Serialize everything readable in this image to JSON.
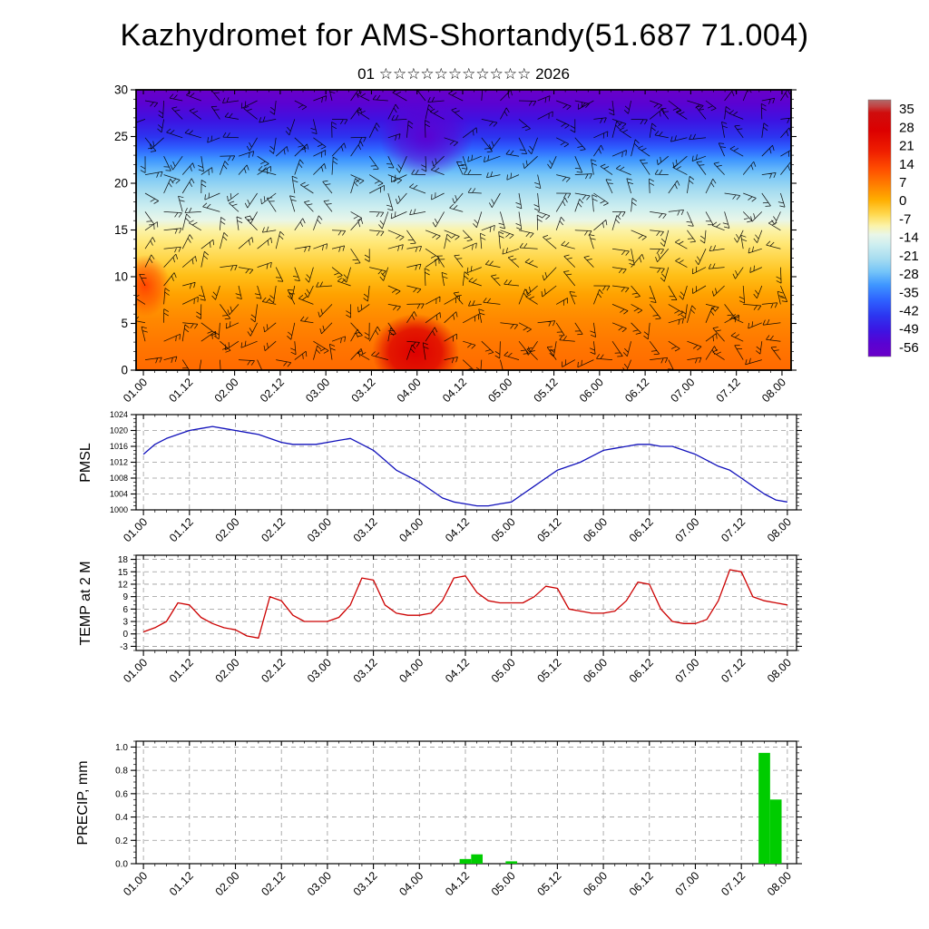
{
  "title": "Kazhydromet for AMS-Shortandy(51.687 71.004)",
  "subtitle": "01 ☆☆☆☆☆☆☆☆☆☆☆ 2026",
  "time_axis": {
    "ticks": [
      "01.00",
      "01.12",
      "02.00",
      "02.12",
      "03.00",
      "03.12",
      "04.00",
      "04.12",
      "05.00",
      "05.12",
      "06.00",
      "06.12",
      "07.00",
      "07.12",
      "08.00"
    ],
    "minor_step_hours": 3
  },
  "chart_data": [
    {
      "type": "heatmap",
      "name": "Wind and temperature time-height cross-section",
      "overlay": "wind barbs",
      "ylim": [
        0,
        30
      ],
      "yticks": [
        0,
        5,
        10,
        15,
        20,
        25,
        30
      ],
      "x_axis": "time_axis",
      "colorbar_ticks": [
        35,
        28,
        21,
        14,
        7,
        0,
        -7,
        -14,
        -21,
        -28,
        -35,
        -42,
        -49,
        -56
      ],
      "colorbar_top_color": "#cf0d0d",
      "colorbar_bottom_color": "#6a00c8"
    },
    {
      "type": "line",
      "name": "PMSL",
      "color": "#1111bb",
      "ylim": [
        1000,
        1024
      ],
      "yticks": [
        1000,
        1004,
        1008,
        1012,
        1016,
        1020,
        1024
      ],
      "x_axis": "time_axis",
      "x_start": "01.00",
      "x_step_hours": 3,
      "values": [
        1014,
        1016.5,
        1018,
        1019,
        1020,
        1020.5,
        1021,
        1020.5,
        1020,
        1019.5,
        1019,
        1018,
        1017,
        1016.5,
        1016.5,
        1016.5,
        1017,
        1017.5,
        1018,
        1016.5,
        1015,
        1012.5,
        1010,
        1008.5,
        1007,
        1005,
        1003,
        1002,
        1001.5,
        1001,
        1001,
        1001.5,
        1002,
        1004,
        1006,
        1008,
        1010,
        1011,
        1012,
        1013.5,
        1015,
        1015.5,
        1016,
        1016.5,
        1016.5,
        1016,
        1016,
        1015,
        1014,
        1012.5,
        1011,
        1010,
        1008,
        1006,
        1004,
        1002.5,
        1002
      ]
    },
    {
      "type": "line",
      "name": "TEMP at 2 M",
      "color": "#cc0000",
      "ylim": [
        -4,
        19
      ],
      "yticks": [
        -3,
        0,
        3,
        6,
        9,
        12,
        15,
        18
      ],
      "x_axis": "time_axis",
      "x_start": "01.00",
      "x_step_hours": 3,
      "values": [
        0.5,
        1.5,
        3,
        7.5,
        7,
        4,
        2.5,
        1.5,
        1,
        -0.5,
        -1,
        9,
        8,
        4.5,
        3,
        3,
        3,
        4,
        7,
        13.5,
        13,
        7,
        5,
        4.5,
        4.5,
        5,
        8,
        13.5,
        14,
        10,
        8,
        7.5,
        7.5,
        7.5,
        9,
        11.5,
        11,
        6,
        5.5,
        5,
        5,
        5.5,
        8,
        12.5,
        12,
        6,
        3,
        2.5,
        2.5,
        3.5,
        8,
        15.5,
        15,
        9,
        8,
        7.5,
        7
      ]
    },
    {
      "type": "bar",
      "name": "PRECIP, mm",
      "color": "#00cc00",
      "ylim": [
        0,
        1.05
      ],
      "yticks": [
        0,
        0.2,
        0.4,
        0.6,
        0.8,
        1
      ],
      "x_axis": "time_axis",
      "x_start": "01.00",
      "x_step_hours": 3,
      "values": [
        0,
        0,
        0,
        0,
        0,
        0,
        0,
        0,
        0,
        0,
        0,
        0,
        0,
        0,
        0,
        0,
        0,
        0,
        0,
        0,
        0,
        0,
        0,
        0,
        0,
        0,
        0,
        0,
        0.04,
        0.08,
        0,
        0,
        0.02,
        0,
        0,
        0,
        0,
        0,
        0,
        0,
        0,
        0,
        0,
        0,
        0,
        0,
        0,
        0,
        0,
        0,
        0,
        0,
        0,
        0,
        0.95,
        0.55,
        0
      ]
    }
  ]
}
